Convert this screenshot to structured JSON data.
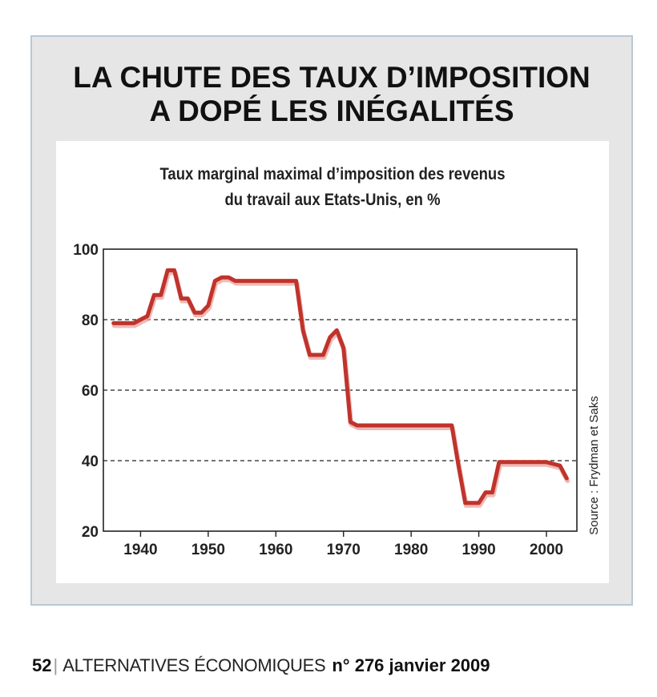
{
  "headline": {
    "line1": "LA CHUTE DES TAUX D’IMPOSITION",
    "line2": "A DOPÉ LES INÉGALITÉS"
  },
  "chart_data": {
    "type": "line",
    "title_line1": "Taux marginal maximal d’imposition des revenus",
    "title_line2": "du travail aux Etats-Unis, en %",
    "xlabel": "",
    "ylabel": "",
    "xlim": [
      1934.5,
      2004.5
    ],
    "ylim": [
      20,
      100
    ],
    "x_ticks": [
      "1940",
      "1950",
      "1960",
      "1970",
      "1980",
      "1990",
      "2000"
    ],
    "x_tick_values": [
      1940,
      1950,
      1960,
      1970,
      1980,
      1990,
      2000
    ],
    "y_ticks": [
      "100",
      "80",
      "60",
      "40",
      "20"
    ],
    "y_tick_values": [
      100,
      80,
      60,
      40,
      20
    ],
    "gridlines": [
      80,
      60,
      40
    ],
    "source": "Source : Frydman et Saks",
    "line_color": "#c0332b",
    "series": [
      {
        "name": "Taux marginal maximal",
        "x": [
          1936,
          1938,
          1939,
          1940,
          1941,
          1942,
          1943,
          1944,
          1945,
          1946,
          1947,
          1948,
          1949,
          1950,
          1951,
          1952,
          1953,
          1954,
          1955,
          1960,
          1963,
          1964,
          1965,
          1966,
          1967,
          1968,
          1969,
          1970,
          1971,
          1972,
          1975,
          1980,
          1986,
          1987,
          1988,
          1989,
          1990,
          1991,
          1992,
          1993,
          2000,
          2001,
          2002,
          2003
        ],
        "values": [
          79,
          79,
          79,
          80,
          81,
          87,
          87,
          94,
          94,
          86,
          86,
          82,
          82,
          84,
          91,
          92,
          92,
          91,
          91,
          91,
          91,
          77,
          70,
          70,
          70,
          75,
          77,
          72,
          51,
          50,
          50,
          50,
          50,
          38.5,
          28,
          28,
          28,
          31,
          31,
          39.6,
          39.6,
          39.1,
          38.6,
          35
        ]
      }
    ]
  },
  "footer": {
    "page_number": "52",
    "separator": "|",
    "magazine": "ALTERNATIVES ÉCONOMIQUES",
    "issue": "n° 276 janvier 2009"
  }
}
